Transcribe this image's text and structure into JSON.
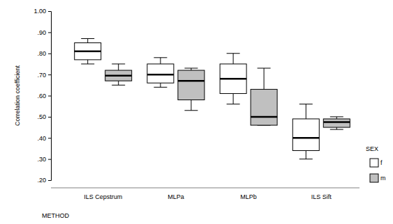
{
  "chart_data": {
    "type": "box",
    "x_label": "METHOD",
    "y_label": "Correlation coefficient",
    "categories": [
      "ILS Cepstrum",
      "MLPa",
      "MLPb",
      "ILS Sift"
    ],
    "legend_title": "SEX",
    "legend": "right",
    "ylim": [
      0.2,
      1.0
    ],
    "yticks": [
      {
        "value": 0.2,
        "label": ".20"
      },
      {
        "value": 0.3,
        "label": ".30"
      },
      {
        "value": 0.4,
        "label": ".40"
      },
      {
        "value": 0.5,
        "label": ".50"
      },
      {
        "value": 0.6,
        "label": ".60"
      },
      {
        "value": 0.7,
        "label": ".70"
      },
      {
        "value": 0.8,
        "label": ".80"
      },
      {
        "value": 0.9,
        "label": ".90"
      },
      {
        "value": 1.0,
        "label": "1.00"
      }
    ],
    "series": [
      {
        "name": "f",
        "color": "#ffffff",
        "min": [
          0.75,
          0.64,
          0.56,
          0.3
        ],
        "q1": [
          0.77,
          0.66,
          0.61,
          0.34
        ],
        "median": [
          0.81,
          0.7,
          0.68,
          0.4
        ],
        "q3": [
          0.85,
          0.75,
          0.75,
          0.49
        ],
        "max": [
          0.87,
          0.78,
          0.8,
          0.56
        ]
      },
      {
        "name": "m",
        "color": "#c0c0c0",
        "min": [
          0.65,
          0.53,
          0.46,
          0.44
        ],
        "q1": [
          0.67,
          0.58,
          0.46,
          0.45
        ],
        "median": [
          0.695,
          0.67,
          0.5,
          0.475
        ],
        "q3": [
          0.72,
          0.72,
          0.63,
          0.49
        ],
        "max": [
          0.75,
          0.73,
          0.73,
          0.5
        ]
      }
    ]
  }
}
